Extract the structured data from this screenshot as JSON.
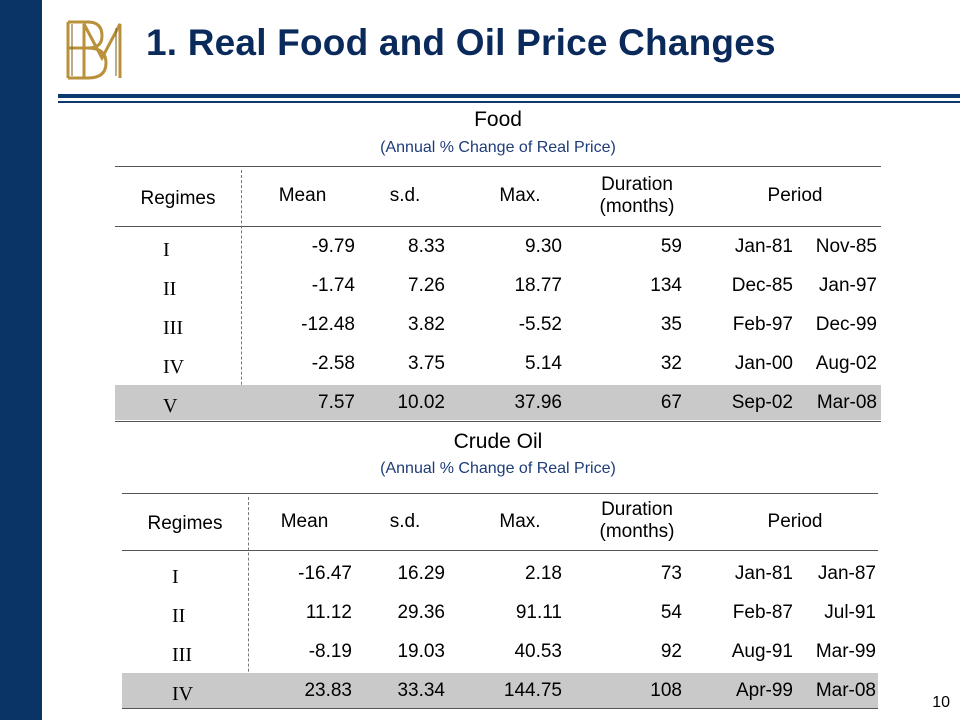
{
  "slide": {
    "title": "1. Real Food and Oil Price Changes",
    "page_number": "10",
    "colors": {
      "sidebar": "#0a3466",
      "title": "#0b2a5c",
      "logo_gold": "#b8913a",
      "highlight_row": "#c9c9c9"
    }
  },
  "logo": {
    "icon": "bm-monogram-logo",
    "letters": "BM"
  },
  "columns": {
    "regimes": "Regimes",
    "mean": "Mean",
    "sd": "s.d.",
    "max": "Max.",
    "duration_l1": "Duration",
    "duration_l2": "(months)",
    "period": "Period"
  },
  "food": {
    "title": "Food",
    "subtitle": "(Annual % Change of Real Price)",
    "rows": [
      {
        "regime": "I",
        "mean": "-9.79",
        "sd": "8.33",
        "max": "9.30",
        "duration": "59",
        "start": "Jan-81",
        "end": "Nov-85"
      },
      {
        "regime": "II",
        "mean": "-1.74",
        "sd": "7.26",
        "max": "18.77",
        "duration": "134",
        "start": "Dec-85",
        "end": "Jan-97"
      },
      {
        "regime": "III",
        "mean": "-12.48",
        "sd": "3.82",
        "max": "-5.52",
        "duration": "35",
        "start": "Feb-97",
        "end": "Dec-99"
      },
      {
        "regime": "IV",
        "mean": "-2.58",
        "sd": "3.75",
        "max": "5.14",
        "duration": "32",
        "start": "Jan-00",
        "end": "Aug-02"
      },
      {
        "regime": "V",
        "mean": "7.57",
        "sd": "10.02",
        "max": "37.96",
        "duration": "67",
        "start": "Sep-02",
        "end": "Mar-08"
      }
    ]
  },
  "oil": {
    "title": "Crude Oil",
    "subtitle": "(Annual % Change of Real Price)",
    "rows": [
      {
        "regime": "I",
        "mean": "-16.47",
        "sd": "16.29",
        "max": "2.18",
        "duration": "73",
        "start": "Jan-81",
        "end": "Jan-87"
      },
      {
        "regime": "II",
        "mean": "11.12",
        "sd": "29.36",
        "max": "91.11",
        "duration": "54",
        "start": "Feb-87",
        "end": "Jul-91"
      },
      {
        "regime": "III",
        "mean": "-8.19",
        "sd": "19.03",
        "max": "40.53",
        "duration": "92",
        "start": "Aug-91",
        "end": "Mar-99"
      },
      {
        "regime": "IV",
        "mean": "23.83",
        "sd": "33.34",
        "max": "144.75",
        "duration": "108",
        "start": "Apr-99",
        "end": "Mar-08"
      }
    ]
  }
}
